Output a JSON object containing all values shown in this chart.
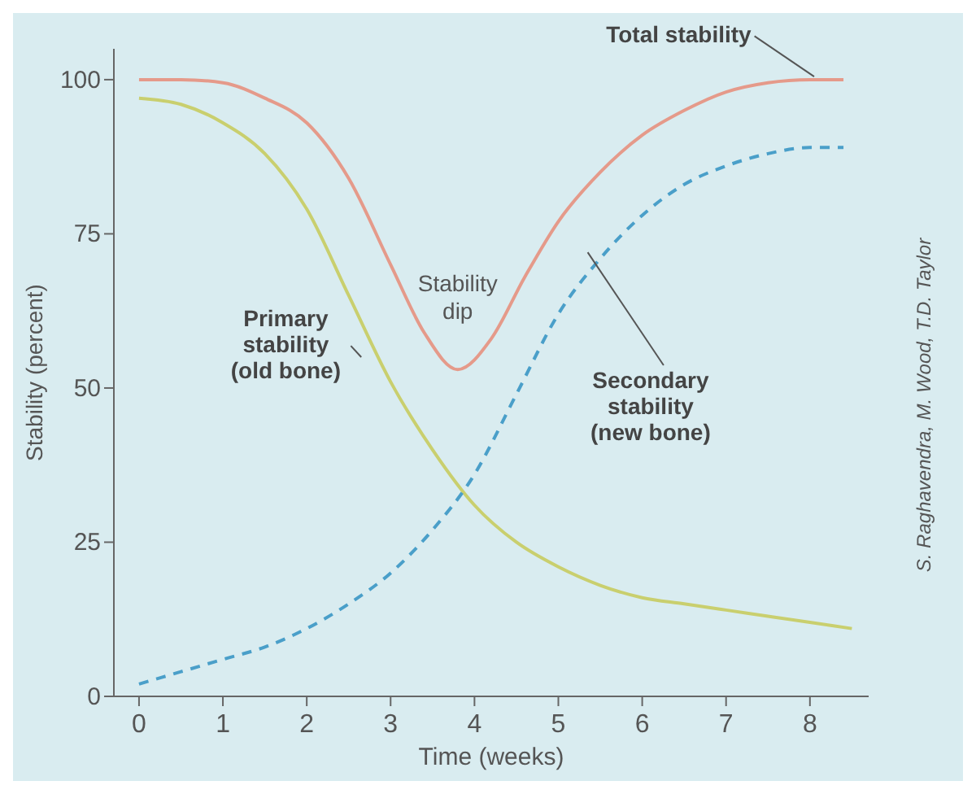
{
  "chart_data": {
    "type": "line",
    "xlabel": "Time (weeks)",
    "ylabel": "Stability (percent)",
    "xlim": [
      -0.3,
      8.7
    ],
    "ylim": [
      0,
      105
    ],
    "xticks": [
      0,
      1,
      2,
      3,
      4,
      5,
      6,
      7,
      8
    ],
    "yticks": [
      0,
      25,
      50,
      75,
      100
    ],
    "grid": false,
    "marker": "none",
    "series": [
      {
        "name": "Total stability",
        "color": "#e59a8a",
        "line_style": "solid",
        "x": [
          0,
          0.5,
          1,
          1.5,
          2,
          2.5,
          3,
          3.4,
          3.8,
          4.2,
          4.6,
          5,
          5.5,
          6,
          6.5,
          7,
          7.5,
          8,
          8.4
        ],
        "values": [
          100,
          100,
          99.5,
          97,
          93,
          84,
          70,
          59,
          53,
          58,
          68,
          77,
          85,
          91,
          95,
          98,
          99.5,
          100,
          100
        ]
      },
      {
        "name": "Primary stability (old bone)",
        "color": "#c9cf6e",
        "line_style": "solid",
        "x": [
          0,
          0.5,
          1,
          1.5,
          2,
          2.5,
          3,
          3.5,
          4,
          4.5,
          5,
          5.5,
          6,
          6.5,
          7,
          7.5,
          8,
          8.5
        ],
        "values": [
          97,
          96,
          93,
          88,
          79,
          65,
          51,
          40,
          31,
          25,
          21,
          18,
          16,
          15,
          14,
          13,
          12,
          11
        ]
      },
      {
        "name": "Secondary stability (new bone)",
        "color": "#4a9fc9",
        "line_style": "dashed",
        "x": [
          0,
          0.5,
          1,
          1.5,
          2,
          2.5,
          3,
          3.5,
          4,
          4.5,
          5,
          5.5,
          6,
          6.5,
          7,
          7.5,
          8,
          8.4
        ],
        "values": [
          2,
          4,
          6,
          8,
          11,
          15,
          20,
          27,
          36,
          49,
          62,
          71,
          78,
          83,
          86,
          88,
          89,
          89
        ]
      }
    ],
    "annotations": [
      {
        "text": "Stability dip",
        "x": 3.8,
        "y": 53
      },
      "S. Raghavendra, M. Wood, T.D. Taylor"
    ]
  }
}
